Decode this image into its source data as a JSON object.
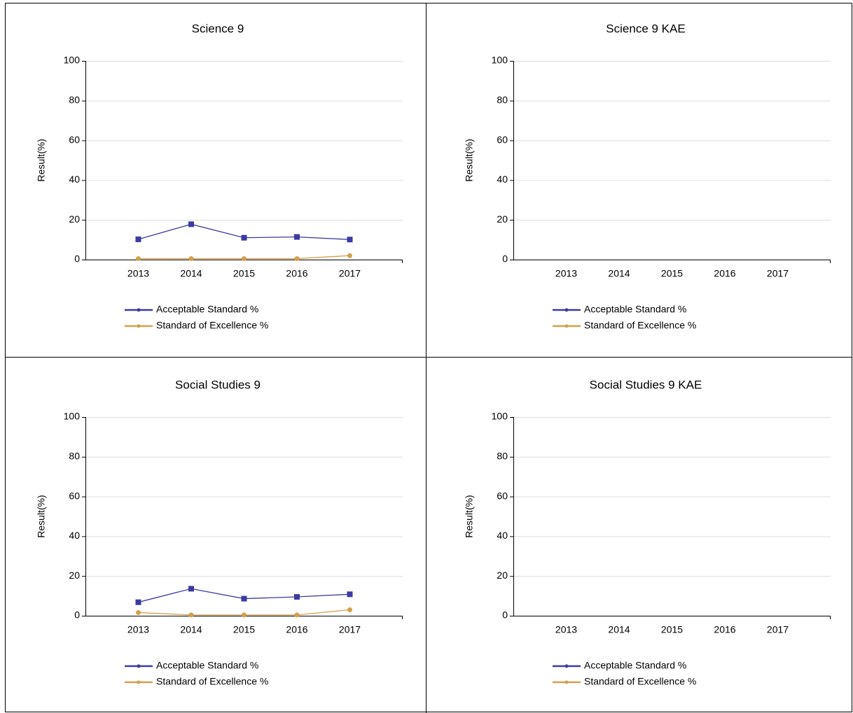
{
  "chart_data": [
    {
      "type": "line",
      "title": "Science 9",
      "y_label": "Result(%)",
      "categories": [
        "2013",
        "2014",
        "2015",
        "2016",
        "2017"
      ],
      "series": [
        {
          "name": "Acceptable Standard %",
          "color": "#3b3ba3",
          "marker": "square",
          "values": [
            10.2,
            17.8,
            11,
            11.4,
            10.1
          ]
        },
        {
          "name": "Standard of Excellence %",
          "color": "#d4a04a",
          "marker": "circle",
          "values": [
            0.5,
            0.5,
            0.5,
            0.5,
            2
          ]
        }
      ],
      "ylim": [
        0,
        100
      ],
      "yticks": [
        0,
        20,
        40,
        60,
        80,
        100
      ],
      "grid": true
    },
    {
      "type": "line",
      "title": "Science 9 KAE",
      "y_label": "Result(%)",
      "categories": [
        "2013",
        "2014",
        "2015",
        "2016",
        "2017"
      ],
      "series": [
        {
          "name": "Acceptable Standard %",
          "color": "#3b3ba3",
          "marker": "square",
          "values": [
            null,
            null,
            null,
            null,
            null
          ]
        },
        {
          "name": "Standard of Excellence %",
          "color": "#d4a04a",
          "marker": "circle",
          "values": [
            null,
            null,
            null,
            null,
            null
          ]
        }
      ],
      "ylim": [
        0,
        100
      ],
      "yticks": [
        0,
        20,
        40,
        60,
        80,
        100
      ],
      "grid": true
    },
    {
      "type": "line",
      "title": "Social Studies 9",
      "y_label": "Result(%)",
      "categories": [
        "2013",
        "2014",
        "2015",
        "2016",
        "2017"
      ],
      "series": [
        {
          "name": "Acceptable Standard %",
          "color": "#3b3ba3",
          "marker": "square",
          "values": [
            6.8,
            13.6,
            8.6,
            9.5,
            10.8
          ]
        },
        {
          "name": "Standard of Excellence %",
          "color": "#d4a04a",
          "marker": "circle",
          "values": [
            1.6,
            0.4,
            0.4,
            0.4,
            3
          ]
        }
      ],
      "ylim": [
        0,
        100
      ],
      "yticks": [
        0,
        20,
        40,
        60,
        80,
        100
      ],
      "grid": true
    },
    {
      "type": "line",
      "title": "Social Studies 9 KAE",
      "y_label": "Result(%)",
      "categories": [
        "2013",
        "2014",
        "2015",
        "2016",
        "2017"
      ],
      "series": [
        {
          "name": "Acceptable Standard %",
          "color": "#3b3ba3",
          "marker": "square",
          "values": [
            null,
            null,
            null,
            null,
            null
          ]
        },
        {
          "name": "Standard of Excellence %",
          "color": "#d4a04a",
          "marker": "circle",
          "values": [
            null,
            null,
            null,
            null,
            null
          ]
        }
      ],
      "ylim": [
        0,
        100
      ],
      "yticks": [
        0,
        20,
        40,
        60,
        80,
        100
      ],
      "grid": true
    }
  ]
}
